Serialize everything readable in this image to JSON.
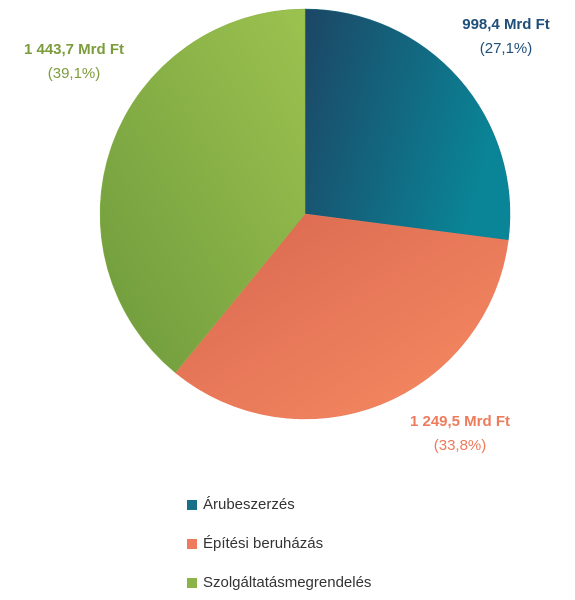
{
  "chart_data": {
    "type": "pie",
    "categories": [
      "Árubeszerzés",
      "Építési beruházás",
      "Szolgáltatásmegrendelés"
    ],
    "values": [
      998.4,
      1249.5,
      1443.7
    ],
    "value_labels": [
      "998,4 Mrd Ft",
      "1 249,5 Mrd Ft",
      "1 443,7 Mrd Ft"
    ],
    "percents": [
      27.1,
      33.8,
      39.1
    ],
    "percent_labels": [
      "(27,1%)",
      "(33,8%)",
      "(39,1%)"
    ],
    "colors": [
      "#176f88",
      "#ee7b5c",
      "#8cb34a"
    ],
    "label_colors": [
      "#1f4e79",
      "#ee7b5c",
      "#7c9c3c"
    ]
  }
}
